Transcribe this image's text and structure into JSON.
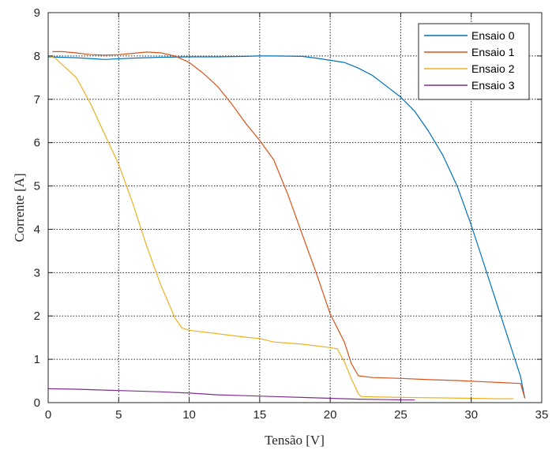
{
  "chart_data": {
    "type": "line",
    "xlabel": "Tensão [V]",
    "ylabel": "Corrente [A]",
    "xlim": [
      0,
      35
    ],
    "ylim": [
      0,
      9
    ],
    "xticks": [
      0,
      5,
      10,
      15,
      20,
      25,
      30,
      35
    ],
    "yticks": [
      0,
      1,
      2,
      3,
      4,
      5,
      6,
      7,
      8,
      9
    ],
    "grid": true,
    "legend_position": "top-right",
    "series": [
      {
        "name": "Ensaio 0",
        "color": "#0072BD",
        "x": [
          0,
          2,
          4,
          6,
          8,
          10,
          12,
          14,
          15,
          16,
          18,
          19,
          20,
          21,
          22,
          23,
          24,
          25,
          26,
          27,
          28,
          29,
          30,
          31,
          32,
          33,
          33.5,
          33.8
        ],
        "y": [
          7.98,
          7.96,
          7.92,
          7.95,
          7.97,
          7.98,
          7.98,
          7.99,
          8.0,
          8.0,
          7.99,
          7.95,
          7.9,
          7.85,
          7.72,
          7.55,
          7.3,
          7.05,
          6.72,
          6.25,
          5.7,
          5.0,
          4.1,
          3.1,
          2.1,
          1.1,
          0.6,
          0.1
        ]
      },
      {
        "name": "Ensaio 1",
        "color": "#D95319",
        "x": [
          0.3,
          1,
          2,
          3,
          4,
          5,
          6,
          7,
          8,
          9,
          10,
          11,
          12,
          13,
          14,
          15,
          16,
          17,
          18,
          19,
          20,
          21,
          21.5,
          22,
          23,
          25,
          27,
          29,
          31,
          33,
          33.5,
          33.8
        ],
        "y": [
          8.1,
          8.1,
          8.07,
          8.03,
          8.02,
          8.03,
          8.06,
          8.09,
          8.07,
          8.0,
          7.85,
          7.6,
          7.3,
          6.9,
          6.45,
          6.05,
          5.6,
          4.8,
          3.9,
          3.0,
          2.05,
          1.4,
          0.9,
          0.62,
          0.58,
          0.56,
          0.53,
          0.51,
          0.48,
          0.45,
          0.44,
          0.1
        ]
      },
      {
        "name": "Ensaio 2",
        "color": "#EDB120",
        "x": [
          0,
          0.5,
          1,
          2,
          3,
          4,
          5,
          6,
          7,
          8,
          9,
          9.5,
          10,
          11,
          12,
          13,
          14,
          15,
          16,
          18,
          20,
          20.5,
          21,
          21.5,
          22,
          22.2,
          25,
          28,
          30,
          32,
          33
        ],
        "y": [
          8.0,
          7.95,
          7.8,
          7.5,
          6.9,
          6.2,
          5.5,
          4.6,
          3.6,
          2.7,
          1.95,
          1.72,
          1.67,
          1.63,
          1.59,
          1.55,
          1.51,
          1.48,
          1.4,
          1.35,
          1.27,
          1.24,
          0.95,
          0.55,
          0.2,
          0.14,
          0.12,
          0.11,
          0.1,
          0.09,
          0.09
        ]
      },
      {
        "name": "Ensaio 3",
        "color": "#7E2F8E",
        "x": [
          0,
          2,
          4,
          6,
          8,
          10,
          12,
          14,
          16,
          18,
          20,
          22,
          24,
          26
        ],
        "y": [
          0.32,
          0.31,
          0.29,
          0.27,
          0.25,
          0.22,
          0.18,
          0.16,
          0.14,
          0.12,
          0.1,
          0.08,
          0.07,
          0.06
        ]
      }
    ]
  }
}
